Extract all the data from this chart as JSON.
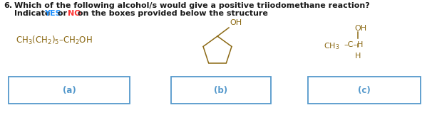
{
  "title_number": "6.",
  "title_line1": "Which of the following alcohol/s would give a positive triiodomethane reaction?",
  "title_line2_pre": "Indicate ",
  "yes_text": "YES",
  "or_text": " or ",
  "no_text": "NO",
  "title_line2_post": " on the boxes provided below the structure",
  "title_color": "#1a1a1a",
  "yes_color": "#1E90FF",
  "no_color": "#FF3333",
  "structure_color": "#8B6914",
  "box_color": "#5599CC",
  "label_color": "#5599CC",
  "label_a": "(a)",
  "label_b": "(b)",
  "label_c": "(c)",
  "bg_color": "#ffffff",
  "title_fontsize": 8.0,
  "struct_fontsize": 8.0,
  "label_fontsize": 8.5
}
